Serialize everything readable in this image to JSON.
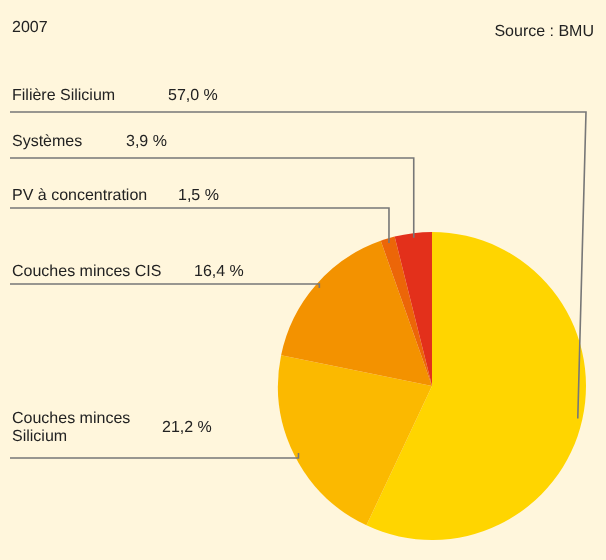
{
  "chart_data": {
    "type": "pie",
    "title": "2007",
    "annotations": [
      "Source : BMU"
    ],
    "categories": [
      "Filière Silicium",
      "Couches minces Silicium",
      "Couches minces CIS",
      "PV à concentration",
      "Systèmes"
    ],
    "values": [
      57.0,
      21.2,
      16.4,
      1.5,
      3.9
    ],
    "value_labels": [
      "57,0 %",
      "21,2 %",
      "16,4 %",
      "1,5 %",
      "3,9 %"
    ],
    "colors": [
      "#ffd500",
      "#fbb900",
      "#f39200",
      "#ec6608",
      "#e3301b"
    ],
    "legend": false
  }
}
